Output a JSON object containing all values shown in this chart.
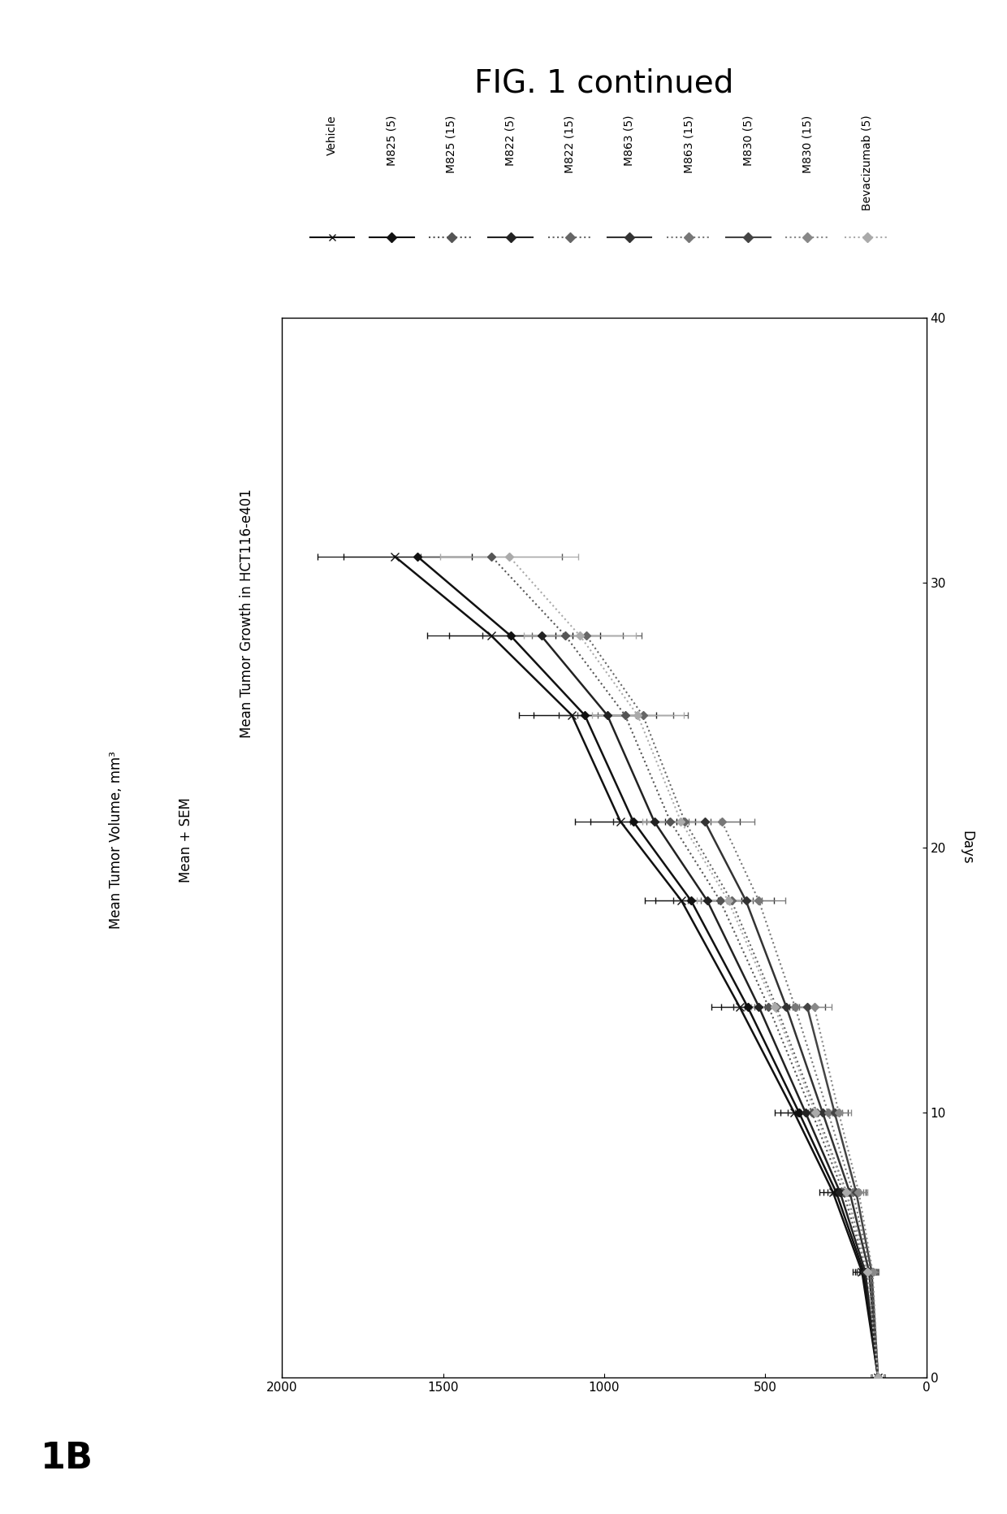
{
  "title_fig": "FIG. 1 continued",
  "panel_label": "1B",
  "subtitle": "Mean Tumor Growth in HCT116-e401",
  "xlabel": "Days",
  "ylabel": "Mean Tumor Volume, mm³",
  "ylabel2": "Mean + SEM",
  "days_lim": [
    0,
    40
  ],
  "vol_lim": [
    0,
    2000
  ],
  "vol_ticks": [
    0,
    500,
    1000,
    1500,
    2000
  ],
  "day_ticks": [
    0,
    10,
    20,
    30,
    40
  ],
  "series": [
    {
      "label": "Vehicle",
      "style": "solid",
      "color": "#111111",
      "marker": "x",
      "markersize": 7,
      "lw": 1.8,
      "days": [
        0,
        4,
        7,
        10,
        14,
        18,
        21,
        25,
        28,
        31
      ],
      "means": [
        150,
        200,
        290,
        410,
        580,
        760,
        950,
        1100,
        1350,
        1650
      ],
      "sems": [
        20,
        28,
        42,
        62,
        88,
        115,
        140,
        165,
        200,
        240
      ]
    },
    {
      "label": "M825 (5)",
      "style": "solid",
      "color": "#111111",
      "marker": "D",
      "markersize": 5,
      "lw": 1.8,
      "days": [
        0,
        4,
        7,
        10,
        14,
        18,
        21,
        25,
        28,
        31
      ],
      "means": [
        150,
        195,
        280,
        395,
        555,
        730,
        910,
        1060,
        1290,
        1580
      ],
      "sems": [
        20,
        26,
        40,
        58,
        83,
        110,
        134,
        158,
        192,
        230
      ]
    },
    {
      "label": "M825 (15)",
      "style": "dotted",
      "color": "#555555",
      "marker": "D",
      "markersize": 5,
      "lw": 1.5,
      "days": [
        0,
        4,
        7,
        10,
        14,
        18,
        21,
        25,
        28,
        31
      ],
      "means": [
        150,
        185,
        258,
        355,
        490,
        640,
        795,
        935,
        1120,
        1350
      ],
      "sems": [
        20,
        24,
        37,
        52,
        74,
        100,
        124,
        148,
        178,
        220
      ]
    },
    {
      "label": "M822 (5)",
      "style": "solid",
      "color": "#222222",
      "marker": "D",
      "markersize": 5,
      "lw": 1.8,
      "days": [
        0,
        4,
        7,
        10,
        14,
        18,
        21,
        25,
        28
      ],
      "means": [
        150,
        190,
        268,
        375,
        520,
        680,
        845,
        990,
        1195
      ],
      "sems": [
        20,
        25,
        38,
        55,
        79,
        105,
        128,
        151,
        182
      ]
    },
    {
      "label": "M822 (15)",
      "style": "dotted",
      "color": "#666666",
      "marker": "D",
      "markersize": 5,
      "lw": 1.5,
      "days": [
        0,
        4,
        7,
        10,
        14,
        18,
        21,
        25,
        28
      ],
      "means": [
        150,
        182,
        248,
        340,
        465,
        605,
        750,
        880,
        1055
      ],
      "sems": [
        20,
        23,
        35,
        49,
        70,
        95,
        118,
        140,
        170
      ]
    },
    {
      "label": "M863 (5)",
      "style": "solid",
      "color": "#333333",
      "marker": "D",
      "markersize": 5,
      "lw": 1.8,
      "days": [
        0,
        4,
        7,
        10,
        14,
        18,
        21
      ],
      "means": [
        150,
        178,
        238,
        322,
        435,
        560,
        688
      ],
      "sems": [
        20,
        22,
        33,
        46,
        65,
        87,
        108
      ]
    },
    {
      "label": "M863 (15)",
      "style": "dotted",
      "color": "#777777",
      "marker": "D",
      "markersize": 5,
      "lw": 1.5,
      "days": [
        0,
        4,
        7,
        10,
        14,
        18,
        21
      ],
      "means": [
        150,
        174,
        228,
        305,
        408,
        520,
        635
      ],
      "sems": [
        20,
        21,
        31,
        43,
        61,
        82,
        102
      ]
    },
    {
      "label": "M830 (5)",
      "style": "solid",
      "color": "#444444",
      "marker": "D",
      "markersize": 5,
      "lw": 1.8,
      "days": [
        0,
        4,
        7,
        10,
        14
      ],
      "means": [
        150,
        170,
        218,
        285,
        370
      ],
      "sems": [
        20,
        20,
        29,
        40,
        56
      ]
    },
    {
      "label": "M830 (15)",
      "style": "dotted",
      "color": "#888888",
      "marker": "D",
      "markersize": 5,
      "lw": 1.5,
      "days": [
        0,
        4,
        7,
        10,
        14
      ],
      "means": [
        150,
        167,
        210,
        272,
        348
      ],
      "sems": [
        20,
        19,
        27,
        38,
        53
      ]
    },
    {
      "label": "Bevacizumab (5)",
      "style": "dotted",
      "color": "#aaaaaa",
      "marker": "D",
      "markersize": 5,
      "lw": 1.5,
      "days": [
        0,
        4,
        7,
        10,
        14,
        18,
        21,
        25,
        28,
        31
      ],
      "means": [
        150,
        183,
        250,
        345,
        472,
        615,
        762,
        896,
        1075,
        1295
      ],
      "sems": [
        20,
        24,
        36,
        51,
        72,
        97,
        120,
        143,
        174,
        215
      ]
    }
  ],
  "bg": "#ffffff",
  "fig_title_fontsize": 28,
  "subtitle_fontsize": 12,
  "axis_label_fontsize": 12,
  "tick_fontsize": 11,
  "legend_fontsize": 10
}
